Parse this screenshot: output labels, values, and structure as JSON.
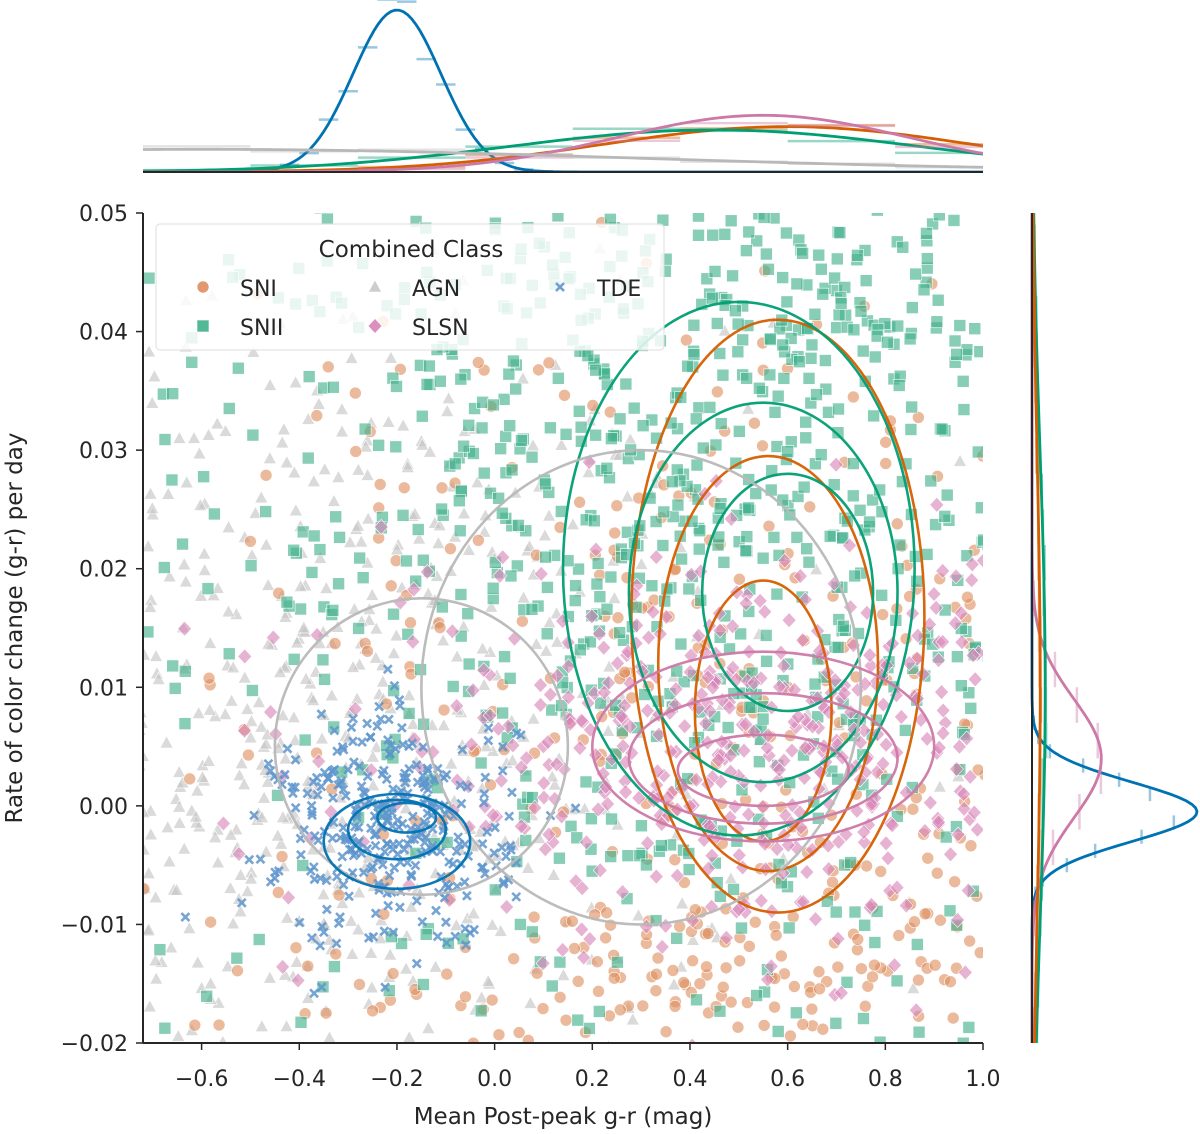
{
  "chart_data": {
    "type": "scatter",
    "title": "",
    "xlabel": "Mean Post-peak g-r (mag)",
    "ylabel": "Rate of color change (g-r) per day",
    "xlim": [
      -0.72,
      1.0
    ],
    "ylim": [
      -0.02,
      0.05
    ],
    "x_ticks": [
      "−0.6",
      "−0.4",
      "−0.2",
      "0.0",
      "0.2",
      "0.4",
      "0.6",
      "0.8",
      "1.0"
    ],
    "x_tick_values": [
      -0.6,
      -0.4,
      -0.2,
      0.0,
      0.2,
      0.4,
      0.6,
      0.8,
      1.0
    ],
    "y_ticks": [
      "−0.02",
      "−0.01",
      "0.00",
      "0.01",
      "0.02",
      "0.03",
      "0.04",
      "0.05"
    ],
    "y_tick_values": [
      -0.02,
      -0.01,
      0.0,
      0.01,
      0.02,
      0.03,
      0.04,
      0.05
    ],
    "grid": false,
    "legend": {
      "title": "Combined Class",
      "placement": "top-left",
      "entries": [
        {
          "name": "SNI",
          "marker": "circle",
          "color": "#de8f5f"
        },
        {
          "name": "SNII",
          "marker": "square",
          "color": "#3fb08b"
        },
        {
          "name": "AGN",
          "marker": "triangle",
          "color": "#c8c8c8"
        },
        {
          "name": "SLSN",
          "marker": "diamond",
          "color": "#d884b8"
        },
        {
          "name": "TDE",
          "marker": "x",
          "color": "#5e95cc"
        }
      ]
    },
    "series": [
      {
        "name": "SNI",
        "color": "#d55e00",
        "marker": "circle",
        "center": [
          0.55,
          0.01
        ],
        "spread": [
          0.5,
          0.018
        ]
      },
      {
        "name": "SNII",
        "color": "#009e73",
        "marker": "square",
        "center": [
          0.45,
          0.02
        ],
        "spread": [
          0.55,
          0.022
        ]
      },
      {
        "name": "AGN",
        "color": "#b8b8b8",
        "marker": "triangle",
        "center": [
          -0.4,
          0.005
        ],
        "spread": [
          0.45,
          0.018
        ]
      },
      {
        "name": "SLSN",
        "color": "#cc79a7",
        "marker": "diamond",
        "center": [
          0.55,
          0.005
        ],
        "spread": [
          0.4,
          0.008
        ]
      },
      {
        "name": "TDE",
        "color": "#0072b2",
        "marker": "x",
        "center": [
          -0.2,
          -0.002
        ],
        "spread": [
          0.12,
          0.005
        ]
      }
    ],
    "contours": [
      {
        "series": "SNI",
        "levels": [
          [
            0.55,
            0.008,
            0.28,
            0.022
          ],
          [
            0.56,
            0.012,
            0.45,
            0.035
          ],
          [
            0.58,
            0.016,
            0.6,
            0.05
          ]
        ]
      },
      {
        "series": "SNII",
        "levels": [
          [
            0.6,
            0.018,
            0.35,
            0.02
          ],
          [
            0.55,
            0.018,
            0.55,
            0.032
          ],
          [
            0.5,
            0.02,
            0.72,
            0.045
          ]
        ]
      },
      {
        "series": "AGN",
        "levels": [
          [
            -0.15,
            0.005,
            0.6,
            0.025
          ],
          [
            0.3,
            0.01,
            0.9,
            0.04
          ]
        ]
      },
      {
        "series": "SLSN",
        "levels": [
          [
            0.55,
            0.003,
            0.35,
            0.006
          ],
          [
            0.55,
            0.004,
            0.55,
            0.011
          ],
          [
            0.55,
            0.005,
            0.7,
            0.016
          ]
        ]
      },
      {
        "series": "TDE",
        "levels": [
          [
            -0.18,
            -0.001,
            0.12,
            0.0025
          ],
          [
            -0.2,
            -0.002,
            0.2,
            0.005
          ],
          [
            -0.2,
            -0.003,
            0.3,
            0.008
          ]
        ]
      }
    ],
    "marginal_x": [
      {
        "series": "TDE",
        "color": "#0072b2",
        "mean": -0.2,
        "sd": 0.09,
        "peak": 1.0
      },
      {
        "series": "SNI",
        "color": "#d55e00",
        "mean": 0.6,
        "sd": 0.38,
        "peak": 0.28
      },
      {
        "series": "SNII",
        "color": "#009e73",
        "mean": 0.45,
        "sd": 0.42,
        "peak": 0.26
      },
      {
        "series": "SLSN",
        "color": "#cc79a7",
        "mean": 0.55,
        "sd": 0.3,
        "peak": 0.35
      },
      {
        "series": "AGN",
        "color": "#b8b8b8",
        "mean": -0.6,
        "sd": 0.9,
        "peak": 0.14
      }
    ],
    "marginal_y": [
      {
        "series": "TDE",
        "color": "#0072b2",
        "mean": -0.0005,
        "sd": 0.0025,
        "peak": 1.0
      },
      {
        "series": "SLSN",
        "color": "#cc79a7",
        "mean": 0.004,
        "sd": 0.005,
        "peak": 0.42
      },
      {
        "series": "SNII",
        "color": "#009e73",
        "mean": 0.01,
        "sd": 0.02,
        "peak": 0.08
      },
      {
        "series": "SNI",
        "color": "#d55e00",
        "mean": 0.01,
        "sd": 0.02,
        "peak": 0.05
      }
    ]
  }
}
